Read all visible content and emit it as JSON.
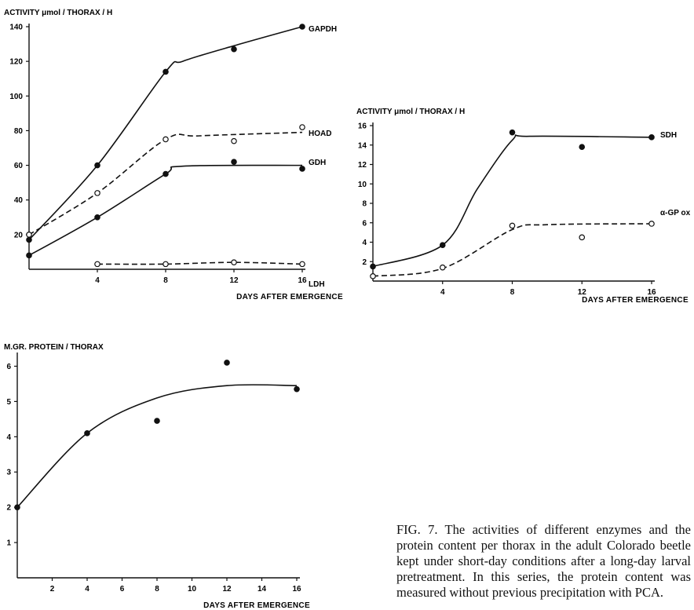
{
  "chart_data": [
    {
      "type": "line",
      "ylabel": "ACTIVITY μmol / THORAX / H",
      "xlabel": "DAYS AFTER EMERGENCE",
      "xlim": [
        0,
        16
      ],
      "ylim": [
        0,
        140
      ],
      "x_ticks": [
        4,
        8,
        12,
        16
      ],
      "y_ticks": [
        20,
        40,
        60,
        80,
        100,
        120,
        140
      ],
      "grid": false,
      "series": [
        {
          "name": "GAPDH",
          "marker": "filled",
          "dash": "solid",
          "points": [
            [
              0,
              17
            ],
            [
              4,
              60
            ],
            [
              8,
              114
            ],
            [
              12,
              127
            ],
            [
              16,
              140
            ]
          ],
          "curve": [
            [
              0,
              17
            ],
            [
              4,
              60
            ],
            [
              8,
              114
            ],
            [
              9,
              120
            ],
            [
              12,
              129
            ],
            [
              16,
              140
            ]
          ]
        },
        {
          "name": "HOAD",
          "marker": "open",
          "dash": "dashed",
          "points": [
            [
              0,
              20
            ],
            [
              4,
              44
            ],
            [
              8,
              75
            ],
            [
              12,
              74
            ],
            [
              16,
              82
            ]
          ],
          "curve": [
            [
              0,
              20
            ],
            [
              4,
              44
            ],
            [
              8,
              75
            ],
            [
              10,
              77
            ],
            [
              16,
              79
            ]
          ]
        },
        {
          "name": "GDH",
          "marker": "filled",
          "dash": "solid",
          "points": [
            [
              0,
              8
            ],
            [
              4,
              30
            ],
            [
              8,
              55
            ],
            [
              12,
              62
            ],
            [
              16,
              58
            ]
          ],
          "curve": [
            [
              0,
              8
            ],
            [
              4,
              30
            ],
            [
              8,
              55
            ],
            [
              9,
              59.5
            ],
            [
              16,
              60
            ]
          ]
        },
        {
          "name": "LDH",
          "marker": "open",
          "dash": "dashed",
          "points": [
            [
              4,
              3
            ],
            [
              8,
              3
            ],
            [
              12,
              4
            ],
            [
              16,
              3
            ]
          ],
          "curve": [
            [
              4,
              3
            ],
            [
              8,
              3
            ],
            [
              12,
              4
            ],
            [
              16,
              3
            ]
          ]
        }
      ]
    },
    {
      "type": "line",
      "ylabel": "ACTIVITY μmol / THORAX / H",
      "xlabel": "DAYS AFTER EMERGENCE",
      "xlim": [
        0,
        16
      ],
      "ylim": [
        0,
        16
      ],
      "x_ticks": [
        4,
        8,
        12,
        16
      ],
      "y_ticks": [
        2,
        4,
        6,
        8,
        10,
        12,
        14,
        16
      ],
      "grid": false,
      "series": [
        {
          "name": "SDH",
          "marker": "filled",
          "dash": "solid",
          "points": [
            [
              0,
              1.5
            ],
            [
              4,
              3.7
            ],
            [
              8,
              15.3
            ],
            [
              12,
              13.8
            ],
            [
              16,
              14.8
            ]
          ],
          "curve": [
            [
              0,
              1.5
            ],
            [
              4,
              3.7
            ],
            [
              6,
              9.5
            ],
            [
              8,
              14.5
            ],
            [
              9,
              14.9
            ],
            [
              16,
              14.8
            ]
          ]
        },
        {
          "name": "α-GP ox",
          "marker": "open",
          "dash": "dashed",
          "points": [
            [
              0,
              0.5
            ],
            [
              4,
              1.4
            ],
            [
              8,
              5.7
            ],
            [
              12,
              4.5
            ],
            [
              16,
              5.9
            ]
          ],
          "curve": [
            [
              0,
              0.5
            ],
            [
              4,
              1.3
            ],
            [
              8,
              5.3
            ],
            [
              10,
              5.8
            ],
            [
              16,
              5.9
            ]
          ]
        }
      ]
    },
    {
      "type": "line",
      "ylabel": "M.GR. PROTEIN / THORAX",
      "xlabel": "DAYS AFTER EMERGENCE",
      "xlim": [
        0,
        16
      ],
      "ylim": [
        0,
        6.3
      ],
      "x_ticks": [
        2,
        4,
        6,
        8,
        10,
        12,
        14,
        16
      ],
      "y_ticks": [
        1,
        2,
        3,
        4,
        5,
        6
      ],
      "grid": false,
      "series": [
        {
          "marker": "filled",
          "dash": "solid",
          "points": [
            [
              0,
              2.0
            ],
            [
              4,
              4.1
            ],
            [
              8,
              4.45
            ],
            [
              12,
              6.1
            ],
            [
              16,
              5.35
            ]
          ],
          "curve": [
            [
              0,
              2.0
            ],
            [
              4,
              4.1
            ],
            [
              8,
              5.1
            ],
            [
              12,
              5.45
            ],
            [
              16,
              5.45
            ]
          ]
        }
      ]
    }
  ],
  "caption": "FIG. 7. The activities of different enzymes and the protein content per thorax in the adult Colorado beetle kept under short-day conditions after a long-day larval pretreatment. In this series, the protein content was measured without previous precipitation with PCA."
}
